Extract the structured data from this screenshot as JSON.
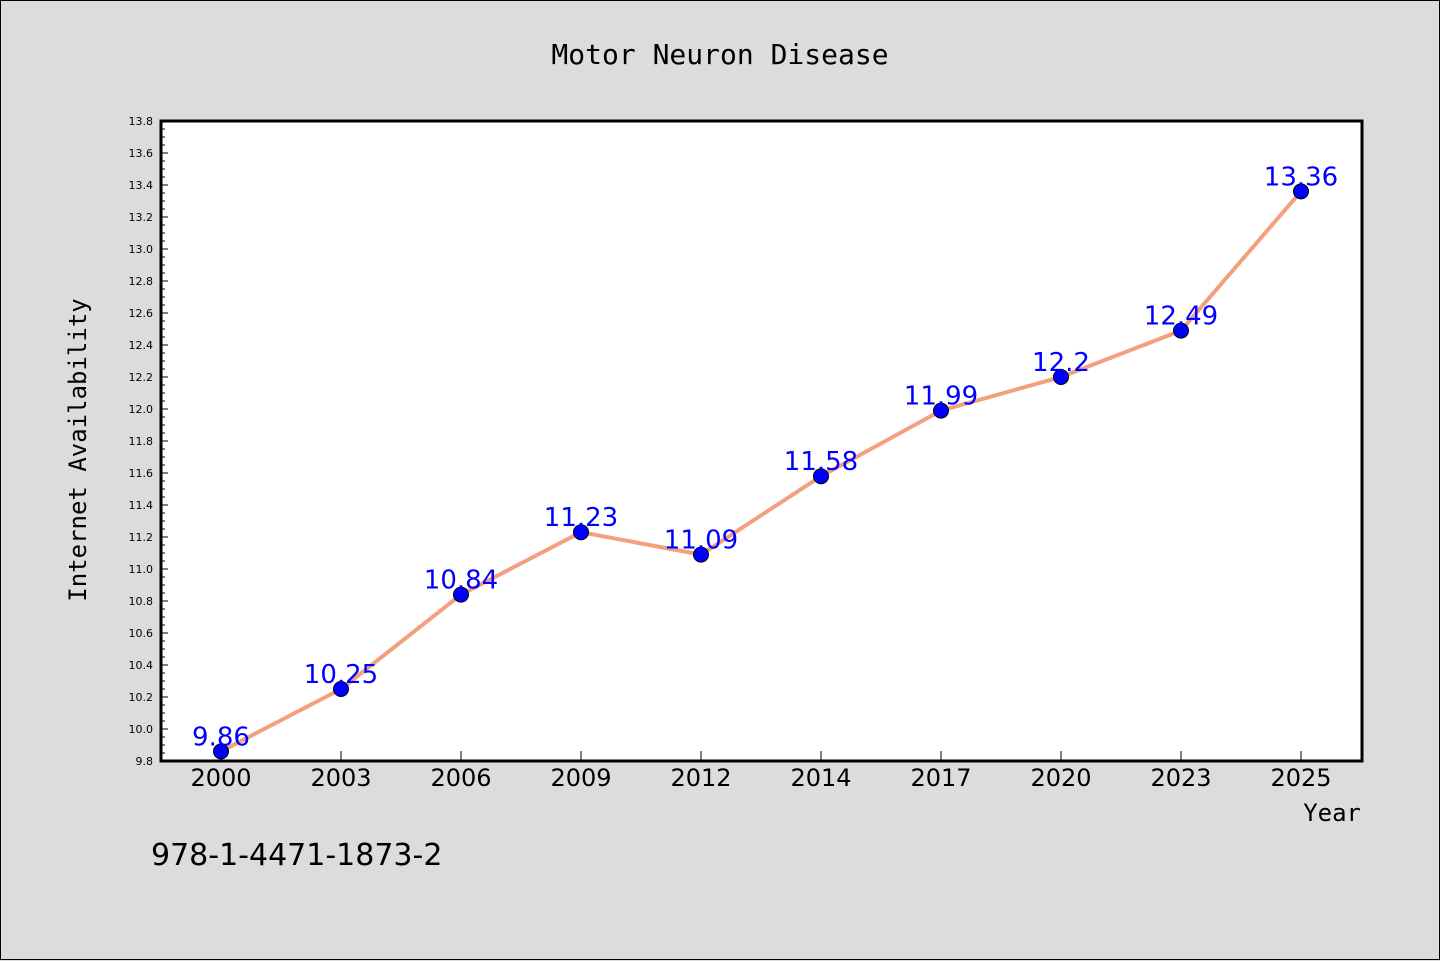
{
  "chart_data": {
    "type": "line",
    "title": "Motor Neuron Disease",
    "xlabel": "Year",
    "ylabel": "Internet Availability",
    "categories": [
      "2000",
      "2003",
      "2006",
      "2009",
      "2012",
      "2014",
      "2017",
      "2020",
      "2023",
      "2025"
    ],
    "series": [
      {
        "values": [
          9.86,
          10.25,
          10.84,
          11.23,
          11.09,
          11.58,
          11.99,
          12.2,
          12.49,
          13.36
        ],
        "data_labels": [
          "9.86",
          "10.25",
          "10.84",
          "11.23",
          "11.09",
          "11.58",
          "11.99",
          "12.2",
          "12.49",
          "13.36"
        ]
      }
    ],
    "ylim": [
      9.8,
      13.8
    ],
    "yticks": [
      "9.8",
      "10.0",
      "10.2",
      "10.4",
      "10.6",
      "10.8",
      "11.0",
      "11.2",
      "11.4",
      "11.6",
      "11.8",
      "12.0",
      "12.2",
      "12.4",
      "12.6",
      "12.8",
      "13.0",
      "13.2",
      "13.4",
      "13.6",
      "13.8"
    ],
    "grid": false,
    "legend": "none",
    "colors": {
      "line": "#f4a07f",
      "marker": "#0000ff",
      "data_label": "#0000ff",
      "background": "#dcdcdc",
      "plot_area": "#ffffff"
    }
  },
  "footnote": "978-1-4471-1873-2"
}
